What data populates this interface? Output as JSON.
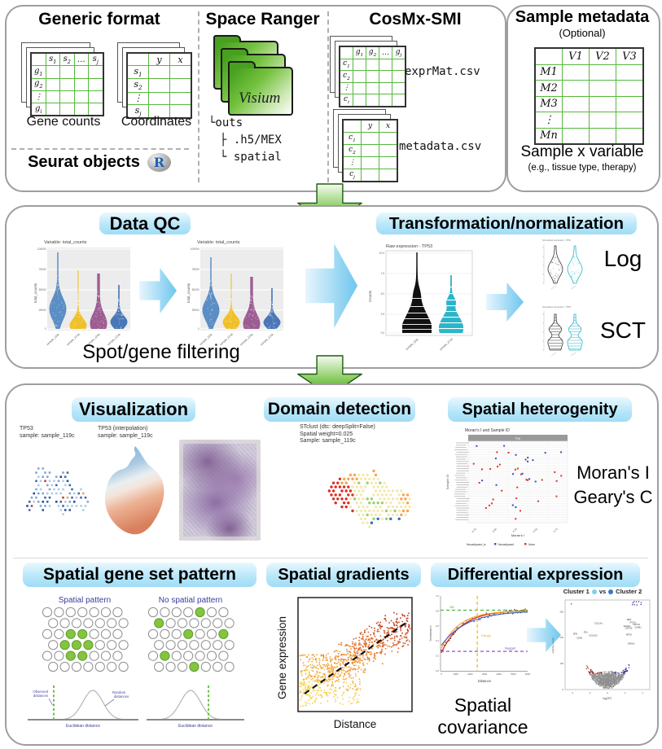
{
  "input": {
    "generic": {
      "title": "Generic format",
      "gene_table": {
        "cols": [
          "s1",
          "s2",
          "…",
          "sj"
        ],
        "rows": [
          "g1",
          "g2",
          "⋮",
          "gi"
        ]
      },
      "gene_label": "Gene counts",
      "coord_table": {
        "cols": [
          "y",
          "x"
        ],
        "rows": [
          "s1",
          "s2",
          "⋮",
          "sj"
        ]
      },
      "coord_label": "Coordinates",
      "seurat_label": "Seurat objects",
      "r_logo": "R"
    },
    "space_ranger": {
      "title": "Space Ranger",
      "folder_label": "Visium",
      "tree_lines": [
        "└outs",
        "├ .h5/MEX",
        "└ spatial"
      ]
    },
    "cosmx": {
      "title": "CosMx-SMI",
      "expr_table": {
        "cols": [
          "g1",
          "g2",
          "…",
          "gj"
        ],
        "rows": [
          "c1",
          "c2",
          "⋮",
          "ci"
        ]
      },
      "expr_file": "exprMat.csv",
      "meta_table": {
        "cols": [
          "y",
          "x"
        ],
        "rows": [
          "c1",
          "c2",
          "⋮",
          "cj"
        ]
      },
      "meta_file": "metadata.csv"
    },
    "sample_meta": {
      "title": "Sample metadata",
      "subtitle": "(Optional)",
      "table": {
        "cols": [
          "V1",
          "V2",
          "V3"
        ],
        "rows": [
          "M1",
          "M2",
          "M3",
          "⋮",
          "Mn"
        ]
      },
      "caption": "Sample x variable",
      "caption_sub": "(e.g., tissue type, therapy)"
    }
  },
  "qc": {
    "title": "Data QC",
    "violin_title": "Variable: total_counts",
    "violin_ylabel": "total_counts",
    "violin_yticks": [
      "100000",
      "75000",
      "50000",
      "25000",
      "0"
    ],
    "violin_xticks": [
      "sample_119c",
      "sample_123d",
      "sample_129a",
      "sample_133b"
    ],
    "caption": "Spot/gene filtering"
  },
  "transform": {
    "title": "Transformation/normalization",
    "raw_title": "Raw expression - TP53",
    "raw_ylabel": "Counts",
    "raw_yticks": [
      "10.0",
      "7.5",
      "5.0",
      "2.5",
      "0.0"
    ],
    "raw_xticks": [
      "sample_119c",
      "sample_123d"
    ],
    "norm_title": "Normalized expression - TP53",
    "log_label": "Log",
    "sct_label": "SCT"
  },
  "visualization": {
    "title": "Visualization",
    "spot_caption": [
      "TP53",
      "sample: sample_119c"
    ],
    "interp_caption": [
      "TP53 (interpolation)",
      "sample: sample_119c"
    ]
  },
  "domain": {
    "title": "Domain detection",
    "caption": [
      "STclust (dtc: deepSplit=False)",
      "Spatial weight=0.025",
      "Sample: sample_119c"
    ]
  },
  "heterogeneity": {
    "title": "Spatial heterogenity",
    "plot_title": "Moran's I and Sample ID",
    "facet_label": "P16",
    "ylabel": "Sample ID",
    "xlabel": "Moran's I",
    "xticks": [
      "-0.25",
      "0.00",
      "0.25",
      "0.50",
      "0.75"
    ],
    "legend_title": "Neoadjuvant_tx",
    "legend_items": [
      "Neoadjuvant",
      "None"
    ],
    "side_text": [
      "Moran's I",
      "Geary's C"
    ]
  },
  "gene_set": {
    "title": "Spatial gene set pattern",
    "left_title": "Spatial pattern",
    "right_title": "No spatial pattern",
    "observed_label": "Observed distances",
    "random_label": "Random distances",
    "axis_label": "Euclidean distance"
  },
  "gradients": {
    "title": "Spatial gradients",
    "ylabel": "Gene expression",
    "xlabel": "Distance"
  },
  "diffexpr": {
    "title": "Differential expression",
    "vario": {
      "sill": "Sill",
      "range": "Range",
      "nugget": "Nugget",
      "ylabel": "Semivariance",
      "xlabel": "Distance",
      "yticks": [
        "1.0",
        "0.8",
        "0.6",
        "0.4",
        "0.2",
        "0.0"
      ],
      "xticks": [
        "0",
        "1000",
        "2000",
        "3000",
        "4000",
        "5000",
        "6000"
      ]
    },
    "caption": [
      "Spatial",
      "covariance"
    ],
    "volcano": {
      "cluster1": "Cluster 1",
      "vs": "vs",
      "cluster2": "Cluster 2",
      "ylabel": "-log10(p-value)",
      "xlabel": "log2FC",
      "yticks": [
        "300",
        "200",
        "100",
        "0"
      ],
      "xticks": [
        "-4",
        "-2",
        "0",
        "2",
        "4"
      ],
      "genes_left": [
        "COL1A1",
        "FN1",
        "COL3A2",
        "SFN",
        "CD36"
      ],
      "genes_right": [
        "MET",
        "ITGA2",
        "KRT19",
        "VEGFA",
        "GDF15",
        "ICAM1",
        "KRT8",
        "EFNA1"
      ]
    }
  },
  "colors": {
    "pill_blue": "#b9e7f9",
    "green_arrow": "#3f9e1f",
    "table_grid": "#56b83e",
    "qc_violins": [
      "#5b8ec4",
      "#f0c02a",
      "#9c5d92",
      "#4a77b8"
    ],
    "cyan_violin": "#2ab5c8",
    "cluster1_dot": "#7fd0f0",
    "cluster2_dot": "#3a78c9",
    "neoadjuvant_point": "#3451b4",
    "none_point": "#e03127"
  }
}
